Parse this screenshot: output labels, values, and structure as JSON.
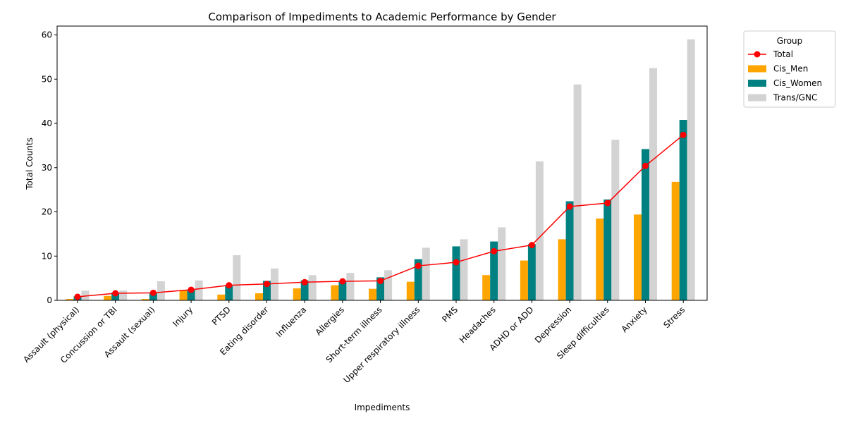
{
  "chart_data": {
    "type": "bar",
    "title": "Comparison of Impediments to Academic Performance by Gender",
    "xlabel": "Impediments",
    "ylabel": "Total Counts",
    "ylim": [
      0,
      62
    ],
    "yticks": [
      0,
      10,
      20,
      30,
      40,
      50,
      60
    ],
    "legend_title": "Group",
    "legend_placement": "outside-top-right",
    "categories": [
      "Assault (physical)",
      "Concussion or TBI",
      "Assault (sexual)",
      "Injury",
      "PTSD",
      "Eating disorder",
      "Influenza",
      "Allergies",
      "Short-term illness",
      "Upper respiratory illness",
      "PMS",
      "Headaches",
      "ADHD or ADD",
      "Depression",
      "Sleep difficulties",
      "Anxiety",
      "Stress"
    ],
    "series": [
      {
        "name": "Cis_Men",
        "kind": "bar",
        "color": "#ffa500",
        "values": [
          0.3,
          1.0,
          0.3,
          2.2,
          1.3,
          1.6,
          2.7,
          3.4,
          2.6,
          4.2,
          0,
          5.7,
          9.0,
          13.8,
          18.5,
          19.4,
          26.8
        ]
      },
      {
        "name": "Cis_Women",
        "kind": "bar",
        "color": "#008080",
        "values": [
          0.9,
          1.8,
          1.6,
          2.5,
          3.3,
          4.4,
          4.5,
          4.3,
          5.2,
          9.3,
          12.2,
          13.3,
          12.7,
          22.4,
          22.8,
          34.2,
          40.8
        ]
      },
      {
        "name": "Trans/GNC",
        "kind": "bar",
        "color": "#d3d3d3",
        "values": [
          2.2,
          2.2,
          4.3,
          4.5,
          10.2,
          7.2,
          5.7,
          6.2,
          6.8,
          11.9,
          13.8,
          16.5,
          31.4,
          48.8,
          36.3,
          52.5,
          59.0
        ]
      },
      {
        "name": "Total",
        "kind": "line",
        "color": "#ff0000",
        "values": [
          0.8,
          1.6,
          1.7,
          2.4,
          3.4,
          3.7,
          4.1,
          4.3,
          4.4,
          7.8,
          8.6,
          11.1,
          12.5,
          21.2,
          22.0,
          30.4,
          37.4
        ]
      }
    ],
    "grid": false
  }
}
